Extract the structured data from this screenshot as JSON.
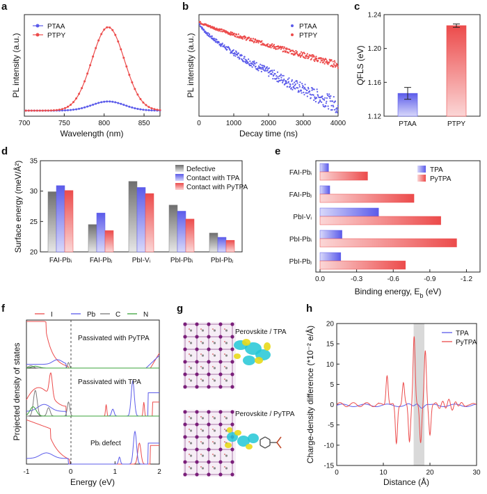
{
  "colors": {
    "blue": "#5b5bea",
    "red": "#ec4b4b",
    "gray": "#7a7a7a",
    "green": "#3aa33a",
    "shade": "#d9d9d9",
    "cyan": "#22c7d6",
    "yellow": "#e8d91a"
  },
  "panels": {
    "a": "a",
    "b": "b",
    "c": "c",
    "d": "d",
    "e": "e",
    "f": "f",
    "g": "g",
    "h": "h"
  },
  "chart_data": [
    {
      "panel": "a",
      "type": "line",
      "xlabel": "Wavelength (nm)",
      "ylabel": "PL intensity (a.u.)",
      "xlim": [
        700,
        870
      ],
      "xticks": [
        700,
        750,
        800,
        850
      ],
      "series": [
        {
          "name": "PTAA",
          "peak_nm": 805,
          "fwhm_nm": 48,
          "peak_rel": 0.11
        },
        {
          "name": "PTPY",
          "peak_nm": 805,
          "fwhm_nm": 48,
          "peak_rel": 1.0
        }
      ]
    },
    {
      "panel": "b",
      "type": "scatter",
      "xlabel": "Decay time (ns)",
      "ylabel": "PL intensity (a.u.)",
      "xlim": [
        0,
        4000
      ],
      "xticks": [
        0,
        1000,
        2000,
        3000,
        4000
      ],
      "series": [
        {
          "name": "PTAA",
          "log_start": 0.0,
          "log_end": -3.3
        },
        {
          "name": "PTPY",
          "log_start": 0.0,
          "log_end": -1.7
        }
      ]
    },
    {
      "panel": "c",
      "type": "bar",
      "ylabel": "QFLS (eV)",
      "ylim": [
        1.12,
        1.24
      ],
      "yticks": [
        "1.12",
        "1.16",
        "1.20",
        "1.24"
      ],
      "categories": [
        "PTAA",
        "PTPY"
      ],
      "values": [
        1.147,
        1.227
      ],
      "errors": [
        0.007,
        0.002
      ]
    },
    {
      "panel": "d",
      "type": "bar",
      "ylabel": "Surface energy (meV/Å²)",
      "ylim": [
        20,
        35
      ],
      "yticks": [
        "20",
        "25",
        "30",
        "35"
      ],
      "categories": [
        "FAI-Pbᵢ",
        "FAI-Pbⱼ",
        "PbI-Vᵢ",
        "PbI-Pbᵢ",
        "PbI-Pbⱼ"
      ],
      "series": [
        {
          "name": "Defective",
          "values": [
            29.9,
            24.5,
            31.6,
            27.7,
            23.1
          ]
        },
        {
          "name": "Contact with TPA",
          "values": [
            30.9,
            26.4,
            30.6,
            26.7,
            22.4
          ]
        },
        {
          "name": "Contact with PyTPA",
          "values": [
            30.1,
            23.5,
            29.6,
            25.4,
            21.9
          ]
        }
      ]
    },
    {
      "panel": "e",
      "type": "bar",
      "xlabel": "Binding energy, E",
      "xlabel_sub": "b",
      "xlabel_unit": " (eV)",
      "xlim": [
        0,
        -1.3
      ],
      "xticks": [
        "0.0",
        "-0.3",
        "-0.6",
        "-0.9",
        "-1.2"
      ],
      "categories": [
        "FAI-Pbᵢ",
        "FAI-Pbⱼ",
        "PbI-Vᵢ",
        "PbI-Pbᵢ",
        "PbI-Pbⱼ"
      ],
      "series": [
        {
          "name": "TPA",
          "values": [
            -0.07,
            -0.08,
            -0.48,
            -0.18,
            -0.17
          ]
        },
        {
          "name": "PyTPA",
          "values": [
            -0.39,
            -0.77,
            -0.99,
            -1.12,
            -0.7
          ]
        }
      ]
    },
    {
      "panel": "f",
      "type": "line",
      "xlabel": "Energy (eV)",
      "ylabel": "Projected density of states",
      "xlim": [
        -1,
        2
      ],
      "xticks": [
        "-1",
        "0",
        "1",
        "2"
      ],
      "legend": [
        "I",
        "Pb",
        "C",
        "N"
      ],
      "subpanels": [
        "Passivated with PyTPA",
        "Passivated with TPA",
        "Pbᵢ defect"
      ]
    },
    {
      "panel": "h",
      "type": "line",
      "xlabel": "Distance (Å)",
      "ylabel": "Charge-density difference (*10⁻² e/Å)",
      "xlim": [
        0,
        30
      ],
      "ylim": [
        -15,
        20
      ],
      "xticks": [
        "0",
        "10",
        "20",
        "30"
      ],
      "yticks": [
        "-15",
        "-10",
        "-5",
        "0",
        "5",
        "10",
        "15",
        "20"
      ],
      "shaded_range": [
        16.5,
        18.8
      ],
      "series": [
        {
          "name": "TPA",
          "amplitude": 0.9
        },
        {
          "name": "PyTPA",
          "peaks": [
            [
              10.8,
              7.4
            ],
            [
              12.8,
              -9.6
            ],
            [
              14.3,
              5.4
            ],
            [
              15.6,
              -9.2
            ],
            [
              16.6,
              17.1
            ],
            [
              18.0,
              -9.7
            ],
            [
              19.0,
              13.6
            ],
            [
              20.0,
              -7.6
            ]
          ]
        }
      ]
    }
  ],
  "panel_g": {
    "top_label": "Perovskite / TPA",
    "bottom_label": "Perovskite / PyTPA"
  }
}
